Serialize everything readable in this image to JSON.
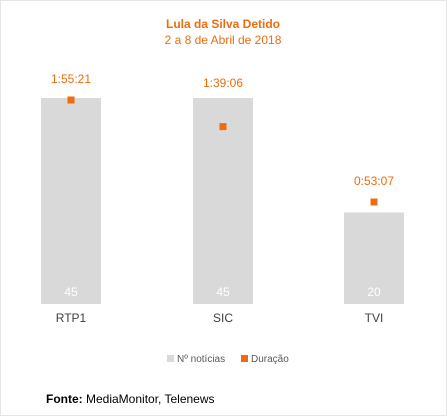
{
  "chart_data": {
    "type": "bar",
    "title": "Lula da Silva Detido",
    "subtitle": "2 a 8 de Abril de 2018",
    "categories": [
      "RTP1",
      "SIC",
      "TVI"
    ],
    "series": [
      {
        "name": "Nº notícias",
        "type": "bar",
        "values": [
          45,
          45,
          20
        ],
        "color": "#d9d9d9"
      },
      {
        "name": "Duração",
        "type": "marker",
        "values": [
          "1:55:21",
          "1:39:06",
          "0:53:07"
        ],
        "values_minutes": [
          115.35,
          99.1,
          53.12
        ],
        "color": "#ee6c0e"
      }
    ],
    "legend_position": "bottom",
    "grid": false
  },
  "source": {
    "label": "Fonte:",
    "text": "MediaMonitor, Telenews"
  }
}
